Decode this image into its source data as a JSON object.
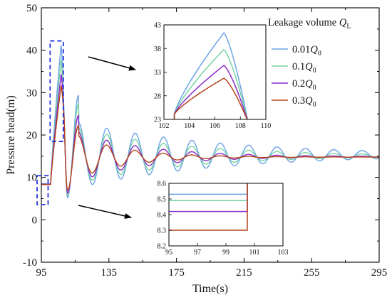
{
  "chart_data": {
    "type": "line",
    "xlabel": "Time(s)",
    "ylabel": "Pressure head(m)",
    "xlim": [
      95,
      295
    ],
    "ylim": [
      -10,
      50
    ],
    "xticks": [
      "95",
      "135",
      "175",
      "215",
      "255",
      "295"
    ],
    "yticks": [
      "-10",
      "0",
      "10",
      "20",
      "30",
      "40",
      "50"
    ],
    "legend": {
      "title_prefix": "Leakage volume ",
      "title_symbol": "Q",
      "title_sub": "L",
      "placement": "top-right"
    },
    "series": [
      {
        "name": "0.01",
        "symbol": "Q",
        "sub": "0",
        "color": "#6aa3e6",
        "base": 8.53,
        "peak1": 41.3,
        "min1": 5.2,
        "peak2": 29.3,
        "amp": 7.7,
        "decay": 0.012,
        "final": 15.3
      },
      {
        "name": "0.1",
        "symbol": "Q",
        "sub": "0",
        "color": "#77d3a2",
        "base": 8.49,
        "peak1": 37.8,
        "min1": 5.7,
        "peak2": 27.3,
        "amp": 6.6,
        "decay": 0.016,
        "final": 15.1
      },
      {
        "name": "0.2",
        "symbol": "Q",
        "sub": "0",
        "color": "#8a2bc8",
        "base": 8.42,
        "peak1": 34.4,
        "min1": 6.3,
        "peak2": 24.6,
        "amp": 5.8,
        "decay": 0.024,
        "final": 14.9
      },
      {
        "name": "0.3",
        "symbol": "Q",
        "sub": "0",
        "color": "#b5441b",
        "base": 8.3,
        "peak1": 31.7,
        "min1": 7.0,
        "peak2": 22.2,
        "amp": 5.0,
        "decay": 0.034,
        "final": 14.8
      }
    ],
    "zoom_top": {
      "xlim": [
        102,
        110
      ],
      "ylim": [
        23,
        43
      ],
      "xticks": [
        "102",
        "104",
        "106",
        "108",
        "110"
      ],
      "yticks": [
        "23",
        "28",
        "33",
        "38",
        "43"
      ],
      "peak_time": 106.7
    },
    "zoom_bottom": {
      "xlim": [
        95,
        103
      ],
      "ylim": [
        8.2,
        8.6
      ],
      "xticks": [
        "95",
        "97",
        "99",
        "101",
        "103"
      ],
      "yticks": [
        "8.2",
        "8.3",
        "8.4",
        "8.5",
        "8.6"
      ],
      "jump_time": 100.5
    },
    "annotation_color": "#2333dd"
  }
}
